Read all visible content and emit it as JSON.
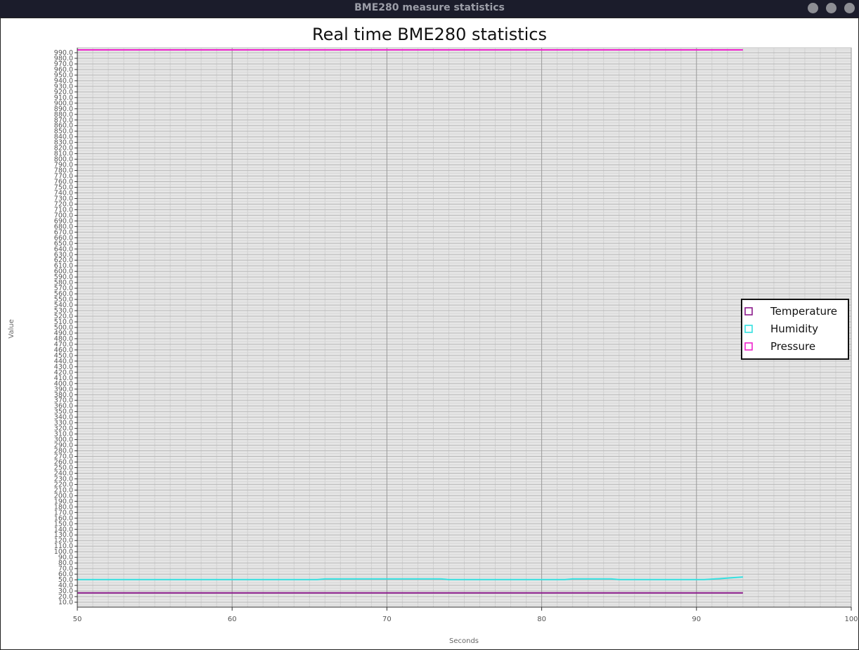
{
  "window": {
    "title": "BME280 measure statistics",
    "buttons": [
      "minimize",
      "maximize",
      "close"
    ]
  },
  "colors": {
    "background": "#ffffff",
    "plot_background": "#e6e6e6",
    "temperature": "#8b1a8b",
    "humidity": "#33e0e0",
    "pressure": "#ee22cc"
  },
  "chart_data": {
    "type": "line",
    "title": "Real time BME280 statistics",
    "xlabel": "Seconds",
    "ylabel": "Value",
    "xlim": [
      50,
      100
    ],
    "ylim": [
      5,
      1000
    ],
    "x_ticks": [
      50,
      60,
      70,
      80,
      90,
      100
    ],
    "y_ticks": [
      10.0,
      20.0,
      30.0,
      40.0,
      50.0,
      60.0,
      70.0,
      80.0,
      90.0,
      100.0,
      110.0,
      120.0,
      130.0,
      140.0,
      150.0,
      160.0,
      170.0,
      180.0,
      190.0,
      200.0,
      210.0,
      220.0,
      230.0,
      240.0,
      250.0,
      260.0,
      270.0,
      280.0,
      290.0,
      300.0,
      310.0,
      320.0,
      330.0,
      340.0,
      350.0,
      360.0,
      370.0,
      380.0,
      390.0,
      400.0,
      410.0,
      420.0,
      430.0,
      440.0,
      450.0,
      460.0,
      470.0,
      480.0,
      490.0,
      500.0,
      510.0,
      520.0,
      530.0,
      540.0,
      550.0,
      560.0,
      570.0,
      580.0,
      590.0,
      600.0,
      610.0,
      620.0,
      630.0,
      640.0,
      650.0,
      660.0,
      670.0,
      680.0,
      690.0,
      700.0,
      710.0,
      720.0,
      730.0,
      740.0,
      750.0,
      760.0,
      770.0,
      780.0,
      790.0,
      800.0,
      810.0,
      820.0,
      830.0,
      840.0,
      850.0,
      860.0,
      870.0,
      880.0,
      890.0,
      900.0,
      910.0,
      920.0,
      930.0,
      940.0,
      950.0,
      960.0,
      970.0,
      980.0,
      990.0
    ],
    "grid": true,
    "legend": "right",
    "series": [
      {
        "name": "Temperature",
        "color": "#8b1a8b",
        "x": [
          50,
          60,
          70,
          80,
          90,
          93
        ],
        "y": [
          26.5,
          26.5,
          26.5,
          26.5,
          26.5,
          26.5
        ]
      },
      {
        "name": "Humidity",
        "color": "#33e0e0",
        "x": [
          50,
          55,
          60,
          65.5,
          66,
          70,
          73.5,
          74,
          78,
          81.5,
          82,
          84.5,
          85,
          88,
          90.5,
          91.5,
          92.5,
          93
        ],
        "y": [
          50.5,
          50.5,
          50.5,
          50.5,
          51.5,
          51.5,
          51.5,
          50.5,
          50.5,
          50.5,
          51.5,
          51.5,
          50.5,
          50.5,
          50.5,
          52,
          54,
          55
        ]
      },
      {
        "name": "Pressure",
        "color": "#ee22cc",
        "x": [
          50,
          60,
          70,
          80,
          90,
          93
        ],
        "y": [
          995,
          995,
          995,
          995,
          995,
          995
        ]
      }
    ]
  }
}
